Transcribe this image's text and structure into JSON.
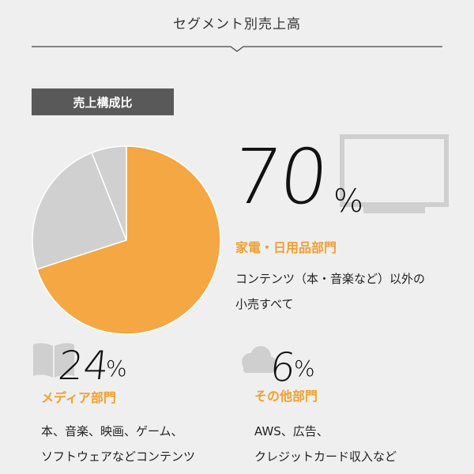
{
  "header": {
    "title": "セグメント別売上高"
  },
  "badge": {
    "label": "売上構成比"
  },
  "colors": {
    "accent": "#f4a742",
    "gray": "#d0d0d0",
    "background": "#efefef"
  },
  "chart_data": {
    "type": "pie",
    "title": "売上構成比",
    "slices": [
      {
        "label": "家電・日用品部門",
        "value": 70,
        "color": "#f4a742"
      },
      {
        "label": "メディア部門",
        "value": 24,
        "color": "#d0d0d0"
      },
      {
        "label": "その他部門",
        "value": 6,
        "color": "#d0d0d0"
      }
    ]
  },
  "segments": {
    "appliances": {
      "percent": "70",
      "unit": "%",
      "title": "家電・日用品部門",
      "desc_line1": "コンテンツ（本・音楽など）以外の",
      "desc_line2": "小売すべて",
      "icon": "monitor-icon"
    },
    "media": {
      "percent": "24",
      "unit": "%",
      "title": "メディア部門",
      "desc_line1": "本、音楽、映画、ゲーム、",
      "desc_line2": "ソフトウェアなどコンテンツ",
      "icon": "book-icon"
    },
    "other": {
      "percent": "6",
      "unit": "%",
      "title": "その他部門",
      "desc_line1": "AWS、広告、",
      "desc_line2": "クレジットカード収入など",
      "icon": "cloud-icon"
    }
  }
}
